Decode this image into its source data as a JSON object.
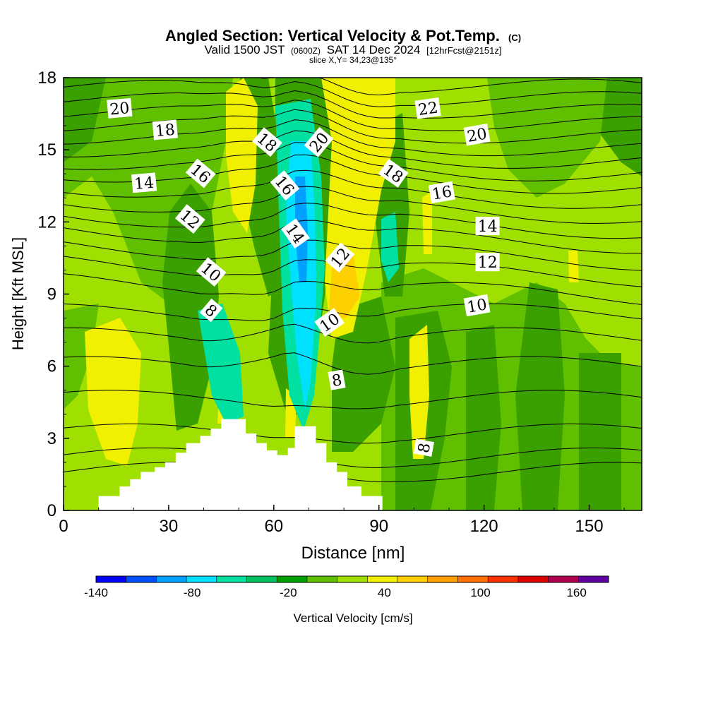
{
  "chart_data": {
    "type": "contour",
    "title": "Angled Section: Vertical Velocity & Pot.Temp.",
    "title_mark": "(C)",
    "subtitle": {
      "prefix": "Valid 1500 JST",
      "utc": "(0600Z)",
      "date": "SAT 14 Dec 2024",
      "fcst": "[12hrFcst@2151z]"
    },
    "slice_note": "slice X,Y= 34,23@135°",
    "xlabel": "Distance [nm]",
    "ylabel": "Height [Kft MSL]",
    "xlim": [
      0,
      165
    ],
    "ylim": [
      0,
      18
    ],
    "xticks": [
      "0",
      "30",
      "60",
      "90",
      "120",
      "150"
    ],
    "yticks": [
      "0",
      "3",
      "6",
      "9",
      "12",
      "15",
      "18"
    ],
    "terrain": [
      [
        10,
        0
      ],
      [
        10,
        0.6
      ],
      [
        16,
        0.6
      ],
      [
        16,
        1
      ],
      [
        19,
        1
      ],
      [
        19,
        1.3
      ],
      [
        22,
        1.3
      ],
      [
        22,
        1.6
      ],
      [
        26,
        1.6
      ],
      [
        26,
        1.8
      ],
      [
        29,
        1.8
      ],
      [
        29,
        2
      ],
      [
        32,
        2
      ],
      [
        32,
        2.4
      ],
      [
        35,
        2.4
      ],
      [
        35,
        2.8
      ],
      [
        39,
        2.8
      ],
      [
        39,
        3.1
      ],
      [
        42,
        3.1
      ],
      [
        42,
        3.4
      ],
      [
        45,
        3.4
      ],
      [
        45,
        3.8
      ],
      [
        52,
        3.8
      ],
      [
        52,
        3.2
      ],
      [
        55,
        3.2
      ],
      [
        55,
        2.8
      ],
      [
        58,
        2.8
      ],
      [
        58,
        2.5
      ],
      [
        61,
        2.5
      ],
      [
        61,
        2.3
      ],
      [
        64,
        2.3
      ],
      [
        64,
        2.6
      ],
      [
        66,
        2.6
      ],
      [
        66,
        3.5
      ],
      [
        72,
        3.5
      ],
      [
        72,
        2.8
      ],
      [
        75,
        2.8
      ],
      [
        75,
        2
      ],
      [
        78,
        2
      ],
      [
        78,
        1.6
      ],
      [
        81,
        1.6
      ],
      [
        81,
        1
      ],
      [
        85,
        1
      ],
      [
        85,
        0.6
      ],
      [
        91,
        0.6
      ],
      [
        91,
        0
      ]
    ],
    "potential_temperature_labels": [
      {
        "text": "20",
        "x": 16,
        "y": 16.7,
        "rot": -5
      },
      {
        "text": "18",
        "x": 29,
        "y": 15.8,
        "rot": -5
      },
      {
        "text": "14",
        "x": 23,
        "y": 13.6,
        "rot": -5
      },
      {
        "text": "16",
        "x": 39,
        "y": 14,
        "rot": 40
      },
      {
        "text": "12",
        "x": 36,
        "y": 12.1,
        "rot": 40
      },
      {
        "text": "10",
        "x": 42,
        "y": 9.9,
        "rot": 40
      },
      {
        "text": "8",
        "x": 42,
        "y": 8.3,
        "rot": 40
      },
      {
        "text": "18",
        "x": 58,
        "y": 15.3,
        "rot": 40
      },
      {
        "text": "20",
        "x": 73,
        "y": 15.3,
        "rot": -50
      },
      {
        "text": "16",
        "x": 63,
        "y": 13.5,
        "rot": 50
      },
      {
        "text": "14",
        "x": 66,
        "y": 11.5,
        "rot": 55
      },
      {
        "text": "12",
        "x": 79,
        "y": 10.5,
        "rot": -50
      },
      {
        "text": "10",
        "x": 76,
        "y": 7.8,
        "rot": -35
      },
      {
        "text": "8",
        "x": 78,
        "y": 5.4,
        "rot": -10
      },
      {
        "text": "18",
        "x": 94,
        "y": 14,
        "rot": 35
      },
      {
        "text": "16",
        "x": 108,
        "y": 13.2,
        "rot": -10
      },
      {
        "text": "22",
        "x": 104,
        "y": 16.7,
        "rot": -8
      },
      {
        "text": "20",
        "x": 118,
        "y": 15.6,
        "rot": -10
      },
      {
        "text": "14",
        "x": 121,
        "y": 11.8,
        "rot": 0
      },
      {
        "text": "12",
        "x": 121,
        "y": 10.3,
        "rot": 0
      },
      {
        "text": "10",
        "x": 118,
        "y": 8.5,
        "rot": -10
      },
      {
        "text": "8",
        "x": 103,
        "y": 2.6,
        "rot": -80
      }
    ],
    "colorbar": {
      "label": "Vertical Velocity [cm/s]",
      "units": "cm/s",
      "levels": [
        -140,
        -120,
        -100,
        -80,
        -60,
        -40,
        -20,
        0,
        20,
        40,
        60,
        80,
        100,
        120,
        140,
        160,
        180
      ],
      "tick_labels": [
        "-140",
        "-80",
        "-20",
        "40",
        "100",
        "160"
      ],
      "colors": [
        "#0000ff",
        "#0050ff",
        "#00a0ff",
        "#00e0ff",
        "#00e0a0",
        "#00c060",
        "#00a000",
        "#60c000",
        "#a0e000",
        "#f0f000",
        "#ffd000",
        "#ffa000",
        "#ff7000",
        "#ff3000",
        "#e00000",
        "#b00050",
        "#6000a0"
      ]
    },
    "vertical_velocity_field": {
      "description_regions": [
        {
          "name": "strong downdraft",
          "x": [
            60,
            72
          ],
          "y": [
            4,
            14
          ],
          "min": -80
        },
        {
          "name": "updraft",
          "x": [
            74,
            86
          ],
          "y": [
            6,
            12
          ],
          "max": 40
        }
      ]
    }
  },
  "colors": {
    "plot_base": "#a0e000",
    "green_mid": "#60c000",
    "green_dark": "#3aa000",
    "yellow": "#f0f000",
    "gold": "#ffd000",
    "teal": "#00e0a0",
    "cyan": "#00e0ff",
    "blue_light": "#00a0ff"
  }
}
